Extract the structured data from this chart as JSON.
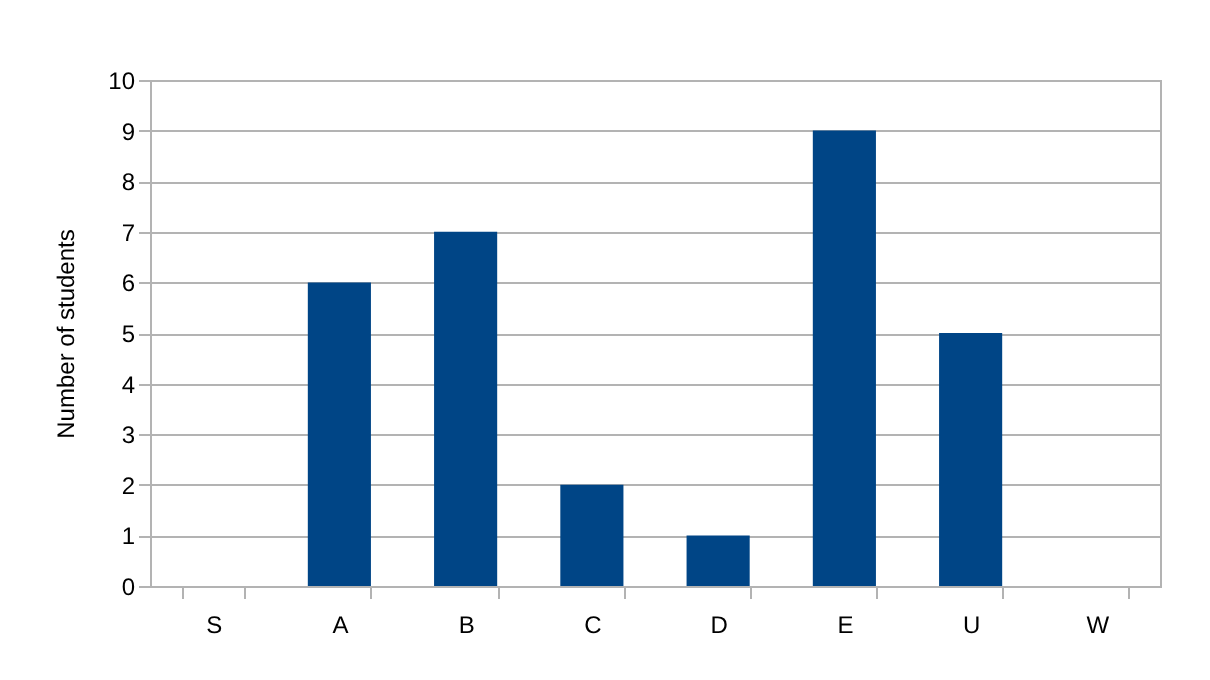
{
  "chart_data": {
    "type": "bar",
    "ylabel": "Number of students",
    "categories": [
      "S",
      "A",
      "B",
      "C",
      "D",
      "E",
      "U",
      "W"
    ],
    "values": [
      0,
      6,
      7,
      2,
      1,
      9,
      5,
      0
    ],
    "color": "#004586",
    "ylim": [
      0,
      10
    ],
    "yticks": [
      0,
      1,
      2,
      3,
      4,
      5,
      6,
      7,
      8,
      9,
      10
    ],
    "grid": true,
    "legend": false
  }
}
